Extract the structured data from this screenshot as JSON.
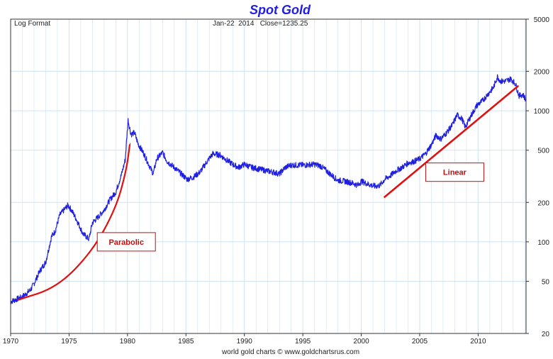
{
  "chart_data": {
    "type": "line",
    "title": "Spot Gold",
    "top_left_label": "Log Format",
    "top_center_label": "Jan-22  2014   Close=1235.25",
    "source": "world gold charts © www.goldchartsrus.com",
    "scale": "log",
    "grid": true,
    "xlim": [
      1970,
      2014.1
    ],
    "ylim": [
      20,
      5000
    ],
    "x_ticks": [
      1970,
      1975,
      1980,
      1985,
      1990,
      1995,
      2000,
      2005,
      2010
    ],
    "y_ticks": [
      20,
      50,
      100,
      200,
      500,
      1000,
      2000,
      5000
    ],
    "colors": {
      "series": "#1f1fe0",
      "annotation": "#e01010",
      "grid": "#cfe3f2",
      "title": "#1f1fe0"
    },
    "series": [
      {
        "x": [
          1970.0,
          1971.0,
          1971.7,
          1972.0,
          1972.5,
          1973.0,
          1973.5,
          1973.8,
          1974.2,
          1974.9,
          1975.2,
          1975.6,
          1976.2,
          1976.7,
          1977.0,
          1977.5,
          1978.0,
          1978.5,
          1979.0,
          1979.5,
          1979.8,
          1980.05,
          1980.3,
          1980.6,
          1980.9,
          1981.4,
          1981.7,
          1982.2,
          1982.5,
          1983.0,
          1983.4,
          1984.0,
          1984.6,
          1985.1,
          1985.6,
          1986.2,
          1986.8,
          1987.3,
          1987.9,
          1988.5,
          1989.0,
          1989.5,
          1990.0,
          1990.6,
          1991.2,
          1991.8,
          1992.5,
          1993.0,
          1993.5,
          1994.0,
          1995.0,
          1996.0,
          1996.5,
          1997.0,
          1997.5,
          1998.0,
          1998.6,
          1999.3,
          1999.7,
          2000.0,
          2000.6,
          2001.2,
          2001.6,
          2002.0,
          2002.5,
          2003.0,
          2003.5,
          2004.0,
          2004.5,
          2005.0,
          2005.5,
          2006.0,
          2006.4,
          2006.8,
          2007.3,
          2007.8,
          2008.2,
          2008.6,
          2008.9,
          2009.4,
          2009.9,
          2010.4,
          2010.9,
          2011.3,
          2011.65,
          2011.9,
          2012.3,
          2012.8,
          2013.2,
          2013.5,
          2013.8,
          2014.06
        ],
        "values": [
          35,
          38,
          43,
          48,
          60,
          70,
          110,
          120,
          160,
          190,
          175,
          150,
          115,
          105,
          140,
          155,
          175,
          210,
          240,
          330,
          420,
          850,
          660,
          680,
          560,
          470,
          410,
          330,
          430,
          480,
          410,
          370,
          330,
          300,
          310,
          340,
          410,
          470,
          460,
          420,
          390,
          370,
          390,
          370,
          360,
          350,
          340,
          330,
          370,
          385,
          385,
          390,
          380,
          350,
          320,
          295,
          290,
          280,
          270,
          290,
          275,
          265,
          270,
          300,
          320,
          350,
          370,
          400,
          410,
          430,
          470,
          550,
          650,
          610,
          680,
          780,
          930,
          870,
          750,
          920,
          1100,
          1200,
          1360,
          1500,
          1820,
          1680,
          1680,
          1750,
          1600,
          1300,
          1330,
          1235
        ]
      }
    ],
    "annotations": [
      {
        "label": "Parabolic",
        "curve": [
          [
            1970.6,
            36
          ],
          [
            1974.0,
            45
          ],
          [
            1977.0,
            85
          ],
          [
            1979.0,
            180
          ],
          [
            1979.9,
            350
          ],
          [
            1980.2,
            560
          ]
        ],
        "box_at": [
          1979.9,
          100
        ]
      },
      {
        "label": "Linear",
        "line": [
          [
            2002.0,
            220
          ],
          [
            2013.4,
            1540
          ]
        ],
        "box_at": [
          2008.0,
          340
        ]
      }
    ]
  }
}
